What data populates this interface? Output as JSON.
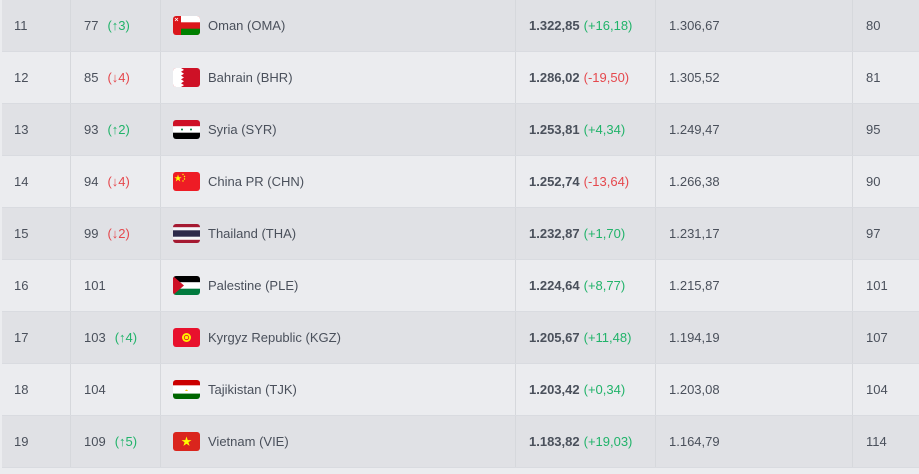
{
  "rows": [
    {
      "rank": "11",
      "world_rank": "77",
      "movement": "(↑3)",
      "movement_dir": "up",
      "flag": "oman-flag",
      "team": "Oman (OMA)",
      "points": "1.322,85",
      "points_diff": "(+16,18)",
      "points_dir": "up",
      "previous_points": "1.306,67",
      "previous_rank": "80"
    },
    {
      "rank": "12",
      "world_rank": "85",
      "movement": "(↓4)",
      "movement_dir": "down",
      "flag": "bahrain-flag",
      "team": "Bahrain (BHR)",
      "points": "1.286,02",
      "points_diff": "(-19,50)",
      "points_dir": "down",
      "previous_points": "1.305,52",
      "previous_rank": "81"
    },
    {
      "rank": "13",
      "world_rank": "93",
      "movement": "(↑2)",
      "movement_dir": "up",
      "flag": "syria-flag",
      "team": "Syria (SYR)",
      "points": "1.253,81",
      "points_diff": "(+4,34)",
      "points_dir": "up",
      "previous_points": "1.249,47",
      "previous_rank": "95"
    },
    {
      "rank": "14",
      "world_rank": "94",
      "movement": "(↓4)",
      "movement_dir": "down",
      "flag": "china-flag",
      "team": "China PR (CHN)",
      "points": "1.252,74",
      "points_diff": "(-13,64)",
      "points_dir": "down",
      "previous_points": "1.266,38",
      "previous_rank": "90"
    },
    {
      "rank": "15",
      "world_rank": "99",
      "movement": "(↓2)",
      "movement_dir": "down",
      "flag": "thailand-flag",
      "team": "Thailand (THA)",
      "points": "1.232,87",
      "points_diff": "(+1,70)",
      "points_dir": "up",
      "previous_points": "1.231,17",
      "previous_rank": "97"
    },
    {
      "rank": "16",
      "world_rank": "101",
      "movement": "",
      "movement_dir": "none",
      "flag": "palestine-flag",
      "team": "Palestine (PLE)",
      "points": "1.224,64",
      "points_diff": "(+8,77)",
      "points_dir": "up",
      "previous_points": "1.215,87",
      "previous_rank": "101"
    },
    {
      "rank": "17",
      "world_rank": "103",
      "movement": "(↑4)",
      "movement_dir": "up",
      "flag": "kyrgyzstan-flag",
      "team": "Kyrgyz Republic (KGZ)",
      "points": "1.205,67",
      "points_diff": "(+11,48)",
      "points_dir": "up",
      "previous_points": "1.194,19",
      "previous_rank": "107"
    },
    {
      "rank": "18",
      "world_rank": "104",
      "movement": "",
      "movement_dir": "none",
      "flag": "tajikistan-flag",
      "team": "Tajikistan (TJK)",
      "points": "1.203,42",
      "points_diff": "(+0,34)",
      "points_dir": "up",
      "previous_points": "1.203,08",
      "previous_rank": "104"
    },
    {
      "rank": "19",
      "world_rank": "109",
      "movement": "(↑5)",
      "movement_dir": "up",
      "flag": "vietnam-flag",
      "team": "Vietnam (VIE)",
      "points": "1.183,82",
      "points_diff": "(+19,03)",
      "points_dir": "up",
      "previous_points": "1.164,79",
      "previous_rank": "114"
    }
  ],
  "colors": {
    "up": "#21b36a",
    "down": "#e5484d",
    "text": "#4a505b",
    "row_odd": "#e0e1e5",
    "row_even": "#ebecef"
  }
}
